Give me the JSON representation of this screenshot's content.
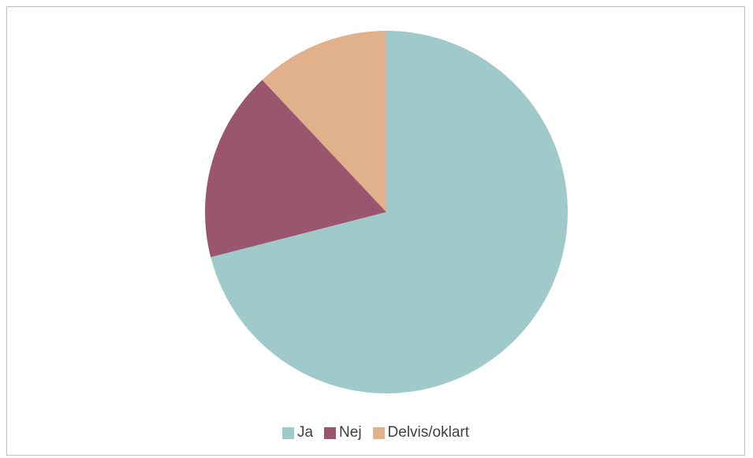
{
  "chart_data": {
    "type": "pie",
    "title": "",
    "categories": [
      "Ja",
      "Nej",
      "Delvis/oklart"
    ],
    "values": [
      71,
      17,
      12
    ],
    "colors": [
      "#a0cac9",
      "#9b566f",
      "#e0b18b"
    ],
    "start": "12-o-clock",
    "direction": "clockwise",
    "legend_position": "bottom"
  }
}
